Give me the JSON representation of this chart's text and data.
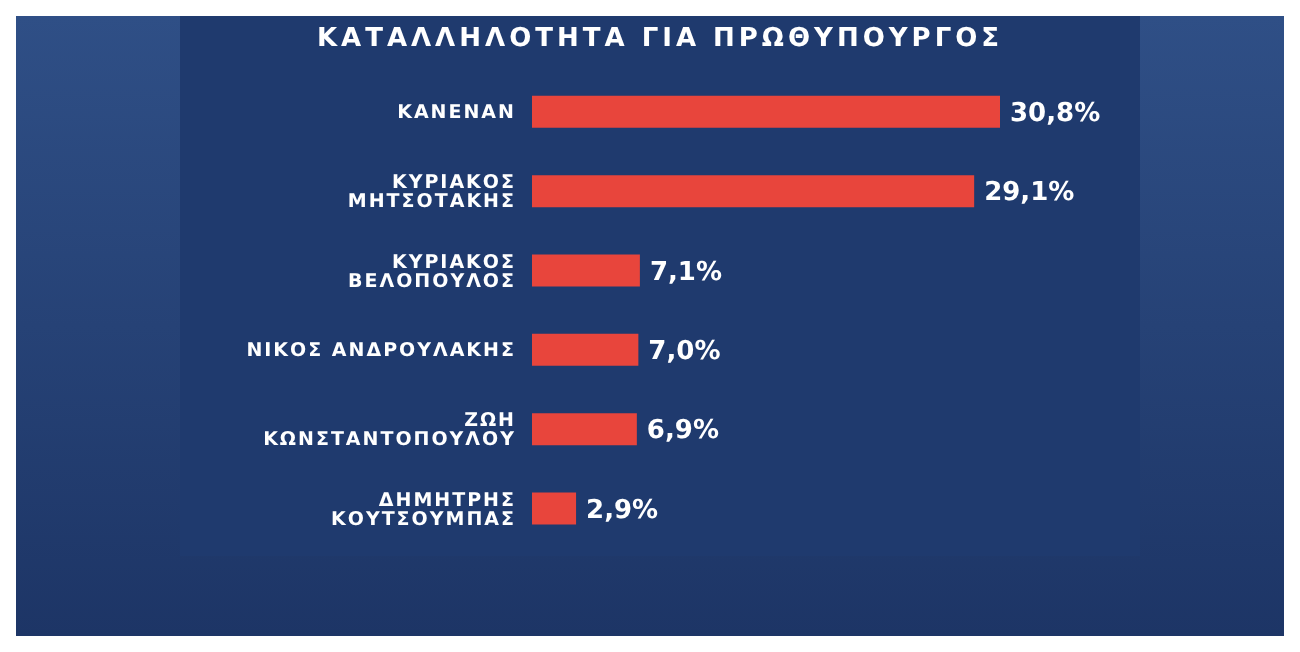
{
  "chart_data": {
    "type": "bar",
    "orientation": "horizontal",
    "title": "ΚΑΤΑΛΛΗΛΟΤΗΤΑ ΓΙΑ ΠΡΩΘΥΠΟΥΡΓΟΣ",
    "categories": [
      "ΚΑΝΕΝΑΝ",
      "ΚΥΡΙΑΚΟΣ ΜΗΤΣΟΤΑΚΗΣ",
      "ΚΥΡΙΑΚΟΣ ΒΕΛΟΠΟΥΛΟΣ",
      "ΝΙΚΟΣ ΑΝΔΡΟΥΛΑΚΗΣ",
      "ΖΩΗ ΚΩΝΣΤΑΝΤΟΠΟΥΛΟΥ",
      "ΔΗΜΗΤΡΗΣ ΚΟΥΤΣΟΥΜΠΑΣ"
    ],
    "values": [
      30.8,
      29.1,
      7.1,
      7.0,
      6.9,
      2.9
    ],
    "value_labels": [
      "30,8%",
      "29,1%",
      "7,1%",
      "7,0%",
      "6,9%",
      "2,9%"
    ],
    "color": "#e8453c"
  }
}
